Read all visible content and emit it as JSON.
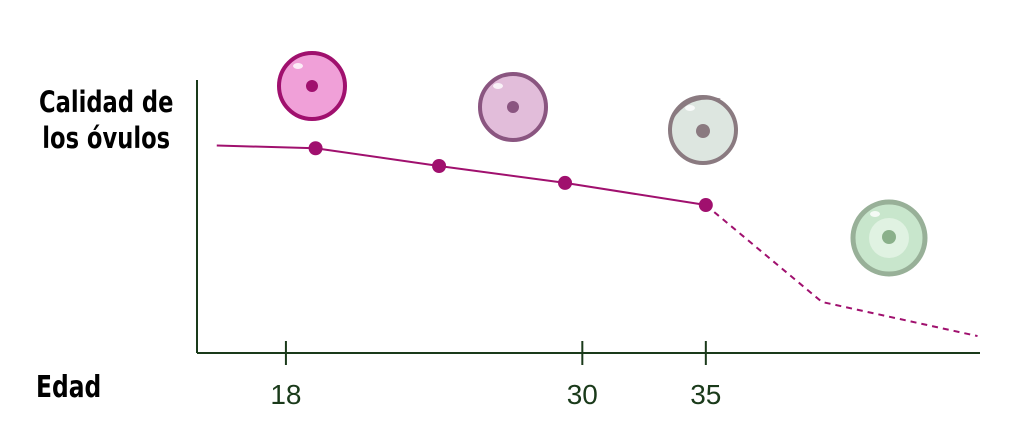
{
  "chart_data": {
    "type": "line",
    "ylabel": "Calidad de los óvulos",
    "xlabel": "Edad",
    "x": [
      15.2,
      19.2,
      24.2,
      29.3,
      35,
      39.7,
      46
    ],
    "series": [
      {
        "style": "solid",
        "color": "#a0106e",
        "values": [
          76,
          75,
          68.5,
          62.3,
          54.2,
          null,
          null
        ]
      },
      {
        "style": "dashed",
        "color": "#a0106e",
        "values": [
          null,
          null,
          null,
          null,
          54.2,
          18.7,
          6.2
        ]
      },
      {
        "style": "points",
        "color": "#a0106e",
        "values": [
          null,
          75,
          68.5,
          62.3,
          54.2,
          null,
          null
        ]
      }
    ],
    "xlim": [
      14.4,
      46.1
    ],
    "xticks": [
      18,
      30,
      35
    ],
    "ylim": [
      0,
      100
    ]
  }
}
